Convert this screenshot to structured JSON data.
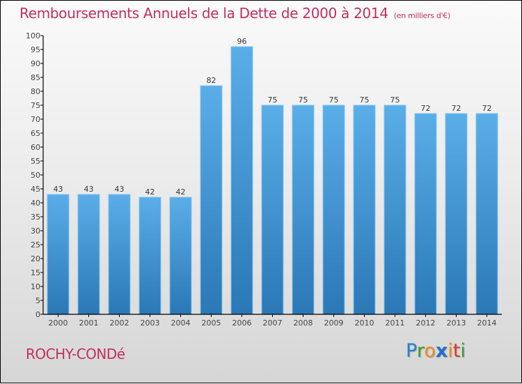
{
  "title": "Remboursements Annuels de la Dette de 2000 à 2014",
  "unit": "(en milliers d'€)",
  "commune": "ROCHY-CONDé",
  "logo": {
    "letters": [
      {
        "ch": "P",
        "color": "#2a7fd0"
      },
      {
        "ch": "r",
        "color": "#35a02c"
      },
      {
        "ch": "o",
        "color": "#f08a1c"
      },
      {
        "ch": "x",
        "color": "#1e6fc8"
      },
      {
        "ch": "i",
        "color": "#f08a1c"
      },
      {
        "ch": "t",
        "color": "#d83a2a"
      },
      {
        "ch": "i",
        "color": "#35a02c"
      }
    ]
  },
  "colors": {
    "title": "#c0305e",
    "bar_top": "#5aaee8",
    "bar_bottom": "#2a78b6",
    "bar_edge": "#7cc4f4"
  },
  "chart_data": {
    "type": "bar",
    "title": "Remboursements Annuels de la Dette de 2000 à 2014",
    "subtitle": "(en milliers d'€)",
    "xlabel": "",
    "ylabel": "",
    "categories": [
      "2000",
      "2001",
      "2002",
      "2003",
      "2004",
      "2005",
      "2006",
      "2007",
      "2008",
      "2009",
      "2010",
      "2011",
      "2012",
      "2013",
      "2014"
    ],
    "values": [
      43,
      43,
      43,
      42,
      42,
      82,
      96,
      75,
      75,
      75,
      75,
      75,
      72,
      72,
      72
    ],
    "ylim": [
      0,
      100
    ],
    "yticks": [
      0,
      5,
      10,
      15,
      20,
      25,
      30,
      35,
      40,
      45,
      50,
      55,
      60,
      65,
      70,
      75,
      80,
      85,
      90,
      95,
      100
    ],
    "grid": false,
    "legend": "none"
  }
}
